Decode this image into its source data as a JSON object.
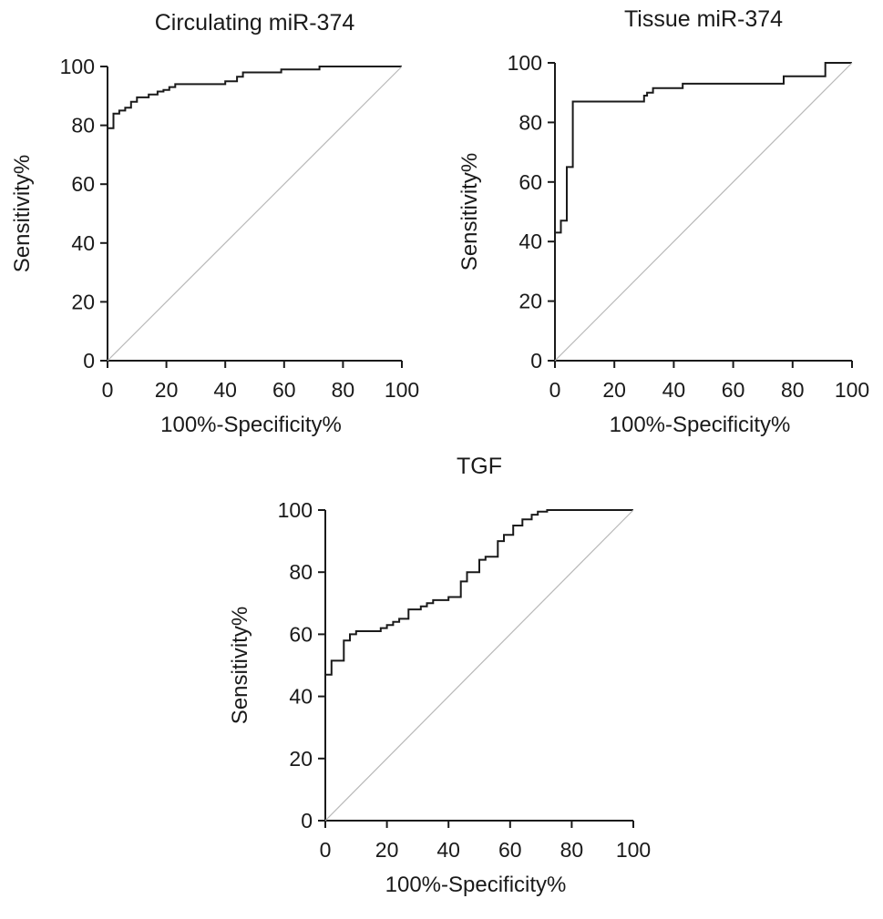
{
  "chart_data": [
    {
      "type": "line",
      "title": "Circulating miR-374",
      "xlabel": "100%-Specificity%",
      "ylabel": "Sensitivity%",
      "xlim": [
        0,
        100
      ],
      "ylim": [
        0,
        100
      ],
      "xticks": [
        "0",
        "20",
        "40",
        "60",
        "80",
        "100"
      ],
      "yticks": [
        "0",
        "20",
        "40",
        "60",
        "80",
        "100"
      ],
      "grid": false,
      "series": [
        {
          "x": [
            0,
            0,
            2,
            2,
            4,
            4,
            6,
            6,
            8,
            8,
            10,
            10,
            14,
            14,
            17,
            17,
            19,
            19,
            21,
            21,
            23,
            23,
            32,
            32,
            40,
            40,
            44,
            44,
            46,
            46,
            59,
            59,
            72,
            72,
            100
          ],
          "y": [
            0,
            79,
            79,
            84,
            84,
            85,
            85,
            86,
            86,
            88,
            88,
            89.5,
            89.5,
            90.5,
            90.5,
            91.5,
            91.5,
            92,
            92,
            93,
            93,
            94,
            94,
            94,
            94,
            95,
            95,
            96.5,
            96.5,
            98,
            98,
            99,
            99,
            100,
            100
          ]
        },
        {
          "x": [
            0,
            100
          ],
          "y": [
            0,
            100
          ]
        }
      ]
    },
    {
      "type": "line",
      "title": "Tissue miR-374",
      "xlabel": "100%-Specificity%",
      "ylabel": "Sensitivity%",
      "xlim": [
        0,
        100
      ],
      "ylim": [
        0,
        100
      ],
      "xticks": [
        "0",
        "20",
        "40",
        "60",
        "80",
        "100"
      ],
      "yticks": [
        "0",
        "20",
        "40",
        "60",
        "80",
        "100"
      ],
      "grid": false,
      "series": [
        {
          "x": [
            0,
            0,
            2,
            2,
            4,
            4,
            6,
            6,
            30,
            30,
            31,
            31,
            33,
            33,
            43,
            43,
            77,
            77,
            91,
            91,
            100
          ],
          "y": [
            0,
            43,
            43,
            47,
            47,
            65,
            65,
            87,
            87,
            89,
            89,
            90,
            90,
            91.5,
            91.5,
            93,
            93,
            95.5,
            95.5,
            100,
            100
          ]
        },
        {
          "x": [
            0,
            100
          ],
          "y": [
            0,
            100
          ]
        }
      ]
    },
    {
      "type": "line",
      "title": "TGF",
      "xlabel": "100%-Specificity%",
      "ylabel": "Sensitivity%",
      "xlim": [
        0,
        100
      ],
      "ylim": [
        0,
        100
      ],
      "xticks": [
        "0",
        "20",
        "40",
        "60",
        "80",
        "100"
      ],
      "yticks": [
        "0",
        "20",
        "40",
        "60",
        "80",
        "100"
      ],
      "grid": false,
      "series": [
        {
          "x": [
            0,
            0,
            2,
            2,
            6,
            6,
            8,
            8,
            10,
            10,
            18,
            18,
            20,
            20,
            22,
            22,
            24,
            24,
            27,
            27,
            31,
            31,
            33,
            33,
            35,
            35,
            40,
            40,
            44,
            44,
            46,
            46,
            50,
            50,
            52,
            52,
            56,
            56,
            58,
            58,
            61,
            61,
            64,
            64,
            67,
            67,
            69,
            69,
            72,
            72,
            100
          ],
          "y": [
            0,
            47,
            47,
            51.5,
            51.5,
            58,
            58,
            60,
            60,
            61,
            61,
            62,
            62,
            63,
            63,
            64,
            64,
            65,
            65,
            68,
            68,
            69,
            69,
            70,
            70,
            71,
            71,
            72,
            72,
            77,
            77,
            80,
            80,
            84,
            84,
            85,
            85,
            90,
            90,
            92,
            92,
            95,
            95,
            97,
            97,
            98.5,
            98.5,
            99.5,
            99.5,
            100,
            100
          ]
        },
        {
          "x": [
            0,
            100
          ],
          "y": [
            0,
            100
          ]
        }
      ]
    }
  ]
}
